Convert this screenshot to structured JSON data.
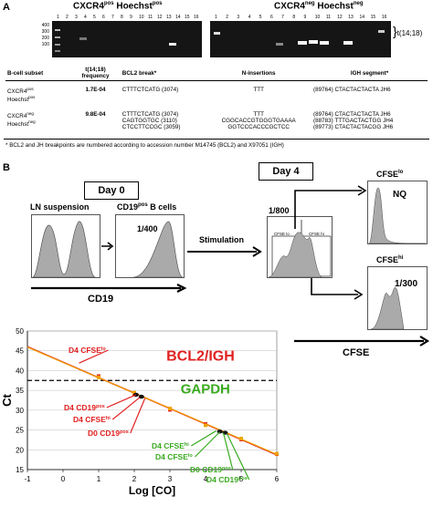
{
  "panelA": {
    "letter": "A",
    "gel_left_title_1": "CXCR4",
    "gel_left_title_1_sup": "pos",
    "gel_left_title_2": " Hoechst",
    "gel_left_title_2_sup": "pos",
    "gel_right_title_1": "CXCR4",
    "gel_right_title_1_sup": "neg",
    "gel_right_title_2": " Hoechst",
    "gel_right_title_2_sup": "neg",
    "ladder": [
      "400",
      "300",
      "200",
      "100"
    ],
    "translocation": "t(14;18)",
    "lanes_left": [
      "1",
      "2",
      "3",
      "4",
      "5",
      "6",
      "7",
      "8",
      "9",
      "10",
      "11",
      "12",
      "13",
      "14",
      "15",
      "16"
    ],
    "lanes_right": [
      "1",
      "2",
      "3",
      "4",
      "5",
      "6",
      "7",
      "8",
      "9",
      "10",
      "11",
      "12",
      "13",
      "14",
      "15",
      "16"
    ],
    "table": {
      "headers": [
        "B-cell subset",
        "t(14;18) frequency",
        "BCL2 break*",
        "N-insertions",
        "IGH segment*"
      ],
      "rows": [
        {
          "subset": "CXCR4",
          "subset_sup": "pos",
          "subset2": "Hoechst",
          "subset2_sup": "pos",
          "freq": "1.7E-04",
          "bcl2": [
            "CTTTCTCATG (3074)"
          ],
          "n": [
            "TTT"
          ],
          "igh": [
            "(89764) CTACTACTACTA  JH6"
          ]
        },
        {
          "subset": "CXCR4",
          "subset_sup": "neg",
          "subset2": "Hoechst",
          "subset2_sup": "neg",
          "freq": "9.8E-04",
          "bcl2": [
            "CTTTCTCATG (3074)",
            "CAGTGGTGC (3110)",
            "CTCCTTCCGC (3059)"
          ],
          "n": [
            "TTT",
            "CGGCACCGTGGGTGAAAA",
            "GGTCCCACCCGCTCC"
          ],
          "igh": [
            "(89764) CTACTACTACTA  JH6",
            "(88783) TTTGACTACTGG JH4",
            "(89773) CTACTACTACGG JH6"
          ]
        }
      ],
      "footnote": "* BCL2 and JH breakpoints are numbered according to accession number M14745 (BCL2) and X97051 (IGH)"
    }
  },
  "panelB": {
    "letter": "B",
    "day0": "Day 0",
    "day4": "Day 4",
    "ln_suspension": "LN suspension",
    "cd19pos": "CD19",
    "cd19pos_sup": "pos",
    "cd19pos_tail": " B cells",
    "dilution_400": "1/400",
    "stimulation": "Stimulation",
    "dilution_800": "1/800",
    "cfse_lo_gate": "CFSE lo",
    "cfse_hi_gate": "CFSE hi",
    "cfse_lo_title": "CFSE",
    "cfse_lo_title_sup": "lo",
    "nq": "NQ",
    "cfse_hi_title": "CFSE",
    "cfse_hi_title_sup": "hi",
    "dilution_300": "1/300",
    "cd19_axis": "CD19",
    "cfse_axis": "CFSE"
  },
  "chart_data": {
    "type": "scatter",
    "title": "",
    "xlabel": "Log [CO]",
    "ylabel": "Ct",
    "xlim": [
      -1,
      6
    ],
    "ylim": [
      15,
      50
    ],
    "xticks": [
      "-1",
      "0",
      "1",
      "2",
      "3",
      "4",
      "5",
      "6"
    ],
    "yticks": [
      "15",
      "20",
      "25",
      "30",
      "35",
      "40",
      "45",
      "50"
    ],
    "grid": "horizontal",
    "threshold_line": 37.5,
    "series": [
      {
        "name": "BCL2/IGH",
        "color": "#e02020",
        "x": [
          1,
          2,
          3,
          4,
          5,
          6
        ],
        "y": [
          38.6,
          34.1,
          30.1,
          26.5,
          22.6,
          18.9
        ]
      },
      {
        "name": "GAPDH",
        "color": "#f0a000",
        "x": [
          1,
          2,
          3,
          4,
          5,
          6
        ],
        "y": [
          38.3,
          34.4,
          30.4,
          26.2,
          22.8,
          19.0
        ]
      }
    ],
    "annotations": [
      {
        "text": "D4 CFSE",
        "sup": "lo",
        "color": "#e02020",
        "x": 0.45,
        "y": 41.9
      },
      {
        "text": "D4 CD19",
        "sup": "pos",
        "color": "#e02020",
        "x": 2.05,
        "y": 33.9
      },
      {
        "text": "D4 CFSE",
        "sup": "hi",
        "color": "#e02020",
        "x": 2.15,
        "y": 33.2
      },
      {
        "text": "D0 CD19",
        "sup": "pos",
        "color": "#e02020",
        "x": 2.3,
        "y": 33.0
      },
      {
        "text": "D4 CFSE",
        "sup": "hi",
        "color": "#3aaa20",
        "x": 4.3,
        "y": 24.8
      },
      {
        "text": "D4 CFSE",
        "sup": "lo",
        "color": "#3aaa20",
        "x": 4.4,
        "y": 24.5
      },
      {
        "text": "D0 CD19",
        "sup": "pos",
        "color": "#3aaa20",
        "x": 4.5,
        "y": 24.3
      },
      {
        "text": "D4 CD19",
        "sup": "pos",
        "color": "#3aaa20",
        "x": 4.6,
        "y": 24.1
      }
    ],
    "labels": {
      "bcl2": "BCL2/IGH",
      "gapdh": "GAPDH"
    }
  }
}
